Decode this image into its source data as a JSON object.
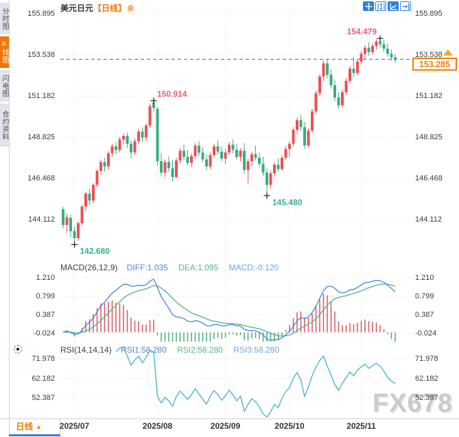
{
  "sidebar": {
    "tabs": [
      {
        "label": "分时图",
        "active": false
      },
      {
        "label": "K线图",
        "active": true
      },
      {
        "label": "闪电图",
        "active": false
      },
      {
        "label": "合约资料",
        "active": false
      }
    ]
  },
  "header": {
    "symbol": "美元日元",
    "period_tag": "【日线】",
    "add_icon": "⊕"
  },
  "toolbar": {
    "buttons": [
      {
        "icon": "crosshair-tool",
        "active": true
      },
      {
        "icon": "axis-scale-tool",
        "active": false
      },
      {
        "icon": "fit-chart-tool",
        "active": true
      },
      {
        "icon": "goto-latest-tool",
        "active": false
      }
    ]
  },
  "price_panel": {
    "axis_labels": [
      "155.895",
      "153.538",
      "151.182",
      "148.825",
      "146.468",
      "144.112"
    ],
    "current_price": "153.285",
    "annotations": [
      {
        "text": "142.680",
        "price": 142.68,
        "candle": 3,
        "kind": "low",
        "side": "right"
      },
      {
        "text": "150.914",
        "price": 150.914,
        "candle": 24,
        "kind": "high",
        "side": "right"
      },
      {
        "text": "145.480",
        "price": 145.48,
        "candle": 54,
        "kind": "low",
        "side": "right"
      },
      {
        "text": "154.479",
        "price": 154.479,
        "candle": 84,
        "kind": "high",
        "side": "left"
      }
    ]
  },
  "macd_panel": {
    "title": "MACD(26,12,9)",
    "diff_label": "DIFF:1.035",
    "dea_label": "DEA:1.095",
    "macd_label": "MACD:-0.120",
    "axis_labels": [
      "1.210",
      "0.799",
      "0.387",
      "-0.024"
    ],
    "params": {
      "slow": 26,
      "fast": 12,
      "signal": 9
    }
  },
  "rsi_panel": {
    "title": "RSI(14,14,14)",
    "rsi1_label": "RSI1:58.280",
    "rsi2_label": "RSI2:58.280",
    "rsi3_label": "RSI3:58.280",
    "axis_labels": [
      "71.978",
      "62.182",
      "52.387"
    ],
    "period": 14
  },
  "bottom_bar": {
    "interval_label": "日线",
    "arrow": "▲"
  },
  "watermark": "FX678",
  "colors": {
    "accent_orange": "#f0760a",
    "up_red": "#ee4f54",
    "down_green": "#39ad82",
    "diff_blue": "#4583e6",
    "dea_green": "#4db483",
    "rsi_cyan": "#49b3d9",
    "price_line_blue": "#2d7ff0",
    "grid": "#ecd9d9",
    "ann_high": "#f25a70",
    "ann_low": "#35b189"
  },
  "chart_data": {
    "type": "candlestick",
    "title": "美元日元 日线",
    "x_labels": [
      "2025/07",
      "2025/08",
      "2025/09",
      "2025/10",
      "2025/11"
    ],
    "month_start_indices": [
      3,
      25,
      43,
      60,
      79
    ],
    "price_axis_range": [
      144.112,
      155.895
    ],
    "indicators": [
      {
        "name": "MACD",
        "params": [
          26,
          12,
          9
        ],
        "readout": {
          "DIFF": 1.035,
          "DEA": 1.095,
          "MACD": -0.12
        },
        "axis": [
          1.21,
          0.799,
          0.387,
          -0.024
        ]
      },
      {
        "name": "RSI",
        "params": [
          14,
          14,
          14
        ],
        "readout": {
          "RSI1": 58.28,
          "RSI2": 58.28,
          "RSI3": 58.28
        },
        "axis": [
          71.978,
          62.182,
          52.387
        ]
      }
    ],
    "candles_format": [
      "open",
      "high",
      "low",
      "close"
    ],
    "candles": [
      [
        144.7,
        144.85,
        143.6,
        143.8
      ],
      [
        143.8,
        144.45,
        143.35,
        144.25
      ],
      [
        144.2,
        144.4,
        143.1,
        143.45
      ],
      [
        143.45,
        143.7,
        142.68,
        143.05
      ],
      [
        143.05,
        144.0,
        142.9,
        143.9
      ],
      [
        143.9,
        144.95,
        143.75,
        144.85
      ],
      [
        144.85,
        145.7,
        144.6,
        145.6
      ],
      [
        145.6,
        145.85,
        144.95,
        145.2
      ],
      [
        145.2,
        146.2,
        145.05,
        146.1
      ],
      [
        146.1,
        147.0,
        145.95,
        146.9
      ],
      [
        146.9,
        147.55,
        146.7,
        147.4
      ],
      [
        147.4,
        147.65,
        146.85,
        147.15
      ],
      [
        147.15,
        148.0,
        147.0,
        147.9
      ],
      [
        147.9,
        148.45,
        147.7,
        148.3
      ],
      [
        148.3,
        148.55,
        147.85,
        148.1
      ],
      [
        148.1,
        148.85,
        147.95,
        148.7
      ],
      [
        148.7,
        149.05,
        148.4,
        148.9
      ],
      [
        148.9,
        149.1,
        148.2,
        148.45
      ],
      [
        148.45,
        148.65,
        147.6,
        147.95
      ],
      [
        147.95,
        148.75,
        147.8,
        148.6
      ],
      [
        148.6,
        149.3,
        148.45,
        149.15
      ],
      [
        149.15,
        149.4,
        148.55,
        148.8
      ],
      [
        148.8,
        149.6,
        148.6,
        149.5
      ],
      [
        149.5,
        150.75,
        149.35,
        150.6
      ],
      [
        150.8,
        150.914,
        150.3,
        150.5
      ],
      [
        150.45,
        150.55,
        147.2,
        147.45
      ],
      [
        147.45,
        147.9,
        146.6,
        146.8
      ],
      [
        146.8,
        147.55,
        146.55,
        147.4
      ],
      [
        147.4,
        147.75,
        146.85,
        147.05
      ],
      [
        147.05,
        147.5,
        146.3,
        146.55
      ],
      [
        146.55,
        147.65,
        146.45,
        147.5
      ],
      [
        147.5,
        148.2,
        147.3,
        148.05
      ],
      [
        148.05,
        148.4,
        147.5,
        147.7
      ],
      [
        147.7,
        148.1,
        147.2,
        147.35
      ],
      [
        147.35,
        147.9,
        147.1,
        147.75
      ],
      [
        147.75,
        148.5,
        147.6,
        148.35
      ],
      [
        148.35,
        148.6,
        147.75,
        147.95
      ],
      [
        147.95,
        148.25,
        147.4,
        147.55
      ],
      [
        147.55,
        147.85,
        146.95,
        147.15
      ],
      [
        147.15,
        147.95,
        147.0,
        147.8
      ],
      [
        147.8,
        148.45,
        147.65,
        148.3
      ],
      [
        148.3,
        148.65,
        147.85,
        148.0
      ],
      [
        148.0,
        148.3,
        147.45,
        147.6
      ],
      [
        147.6,
        148.15,
        147.3,
        147.95
      ],
      [
        147.95,
        148.55,
        147.8,
        148.4
      ],
      [
        148.4,
        148.7,
        147.9,
        148.1
      ],
      [
        148.1,
        148.45,
        147.55,
        147.7
      ],
      [
        147.7,
        148.2,
        147.45,
        148.05
      ],
      [
        148.05,
        148.5,
        146.75,
        146.95
      ],
      [
        146.95,
        147.6,
        146.2,
        147.45
      ],
      [
        147.45,
        148.0,
        147.15,
        147.85
      ],
      [
        147.85,
        148.35,
        147.5,
        147.65
      ],
      [
        147.65,
        147.95,
        147.1,
        147.3
      ],
      [
        147.3,
        147.7,
        146.6,
        146.8
      ],
      [
        146.8,
        147.05,
        145.48,
        146.1
      ],
      [
        146.1,
        146.9,
        145.9,
        146.75
      ],
      [
        146.75,
        147.4,
        146.55,
        147.25
      ],
      [
        147.25,
        147.6,
        146.85,
        147.0
      ],
      [
        147.0,
        147.8,
        146.9,
        147.65
      ],
      [
        147.65,
        148.3,
        147.5,
        148.15
      ],
      [
        148.15,
        148.6,
        147.7,
        148.45
      ],
      [
        148.45,
        149.4,
        148.3,
        149.25
      ],
      [
        149.25,
        149.95,
        149.0,
        149.8
      ],
      [
        149.8,
        150.1,
        149.2,
        149.4
      ],
      [
        149.4,
        149.7,
        148.15,
        148.35
      ],
      [
        148.35,
        149.35,
        148.25,
        149.2
      ],
      [
        149.2,
        150.45,
        149.1,
        150.3
      ],
      [
        150.3,
        151.5,
        150.15,
        151.35
      ],
      [
        151.35,
        152.45,
        151.2,
        152.3
      ],
      [
        152.3,
        153.25,
        152.05,
        153.05
      ],
      [
        153.05,
        153.3,
        152.2,
        152.4
      ],
      [
        152.4,
        152.7,
        151.6,
        151.8
      ],
      [
        151.8,
        152.1,
        150.9,
        151.1
      ],
      [
        151.1,
        151.4,
        150.45,
        150.65
      ],
      [
        150.65,
        151.55,
        150.5,
        151.4
      ],
      [
        151.4,
        152.2,
        151.25,
        152.05
      ],
      [
        152.05,
        152.9,
        151.9,
        152.75
      ],
      [
        152.75,
        153.4,
        152.3,
        152.5
      ],
      [
        152.5,
        153.3,
        152.35,
        153.15
      ],
      [
        153.15,
        153.75,
        153.0,
        153.6
      ],
      [
        153.6,
        154.1,
        153.3,
        153.95
      ],
      [
        153.95,
        154.25,
        153.5,
        153.7
      ],
      [
        153.7,
        154.2,
        153.55,
        154.05
      ],
      [
        154.05,
        154.45,
        153.85,
        154.3
      ],
      [
        154.3,
        154.479,
        153.95,
        154.15
      ],
      [
        154.15,
        154.4,
        153.7,
        153.9
      ],
      [
        153.9,
        154.2,
        153.45,
        153.6
      ],
      [
        153.6,
        153.85,
        153.2,
        153.4
      ],
      [
        153.4,
        153.6,
        153.1,
        153.285
      ]
    ]
  }
}
